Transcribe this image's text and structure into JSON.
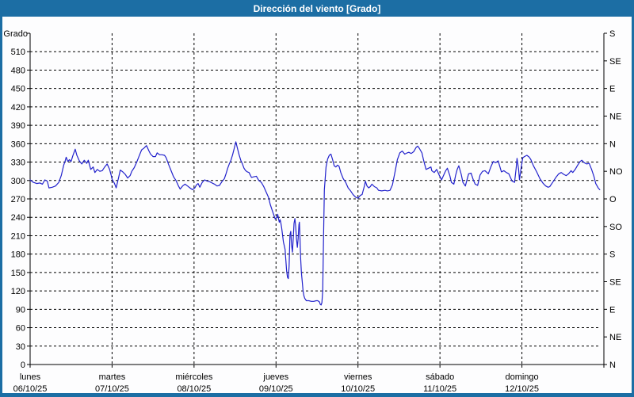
{
  "window": {
    "title": "Dirección del viento [Grado]"
  },
  "colors": {
    "frame": "#1c6ea4",
    "background": "#fdfdfe",
    "line": "#2222cc",
    "grid": "#000000",
    "title_text": "#ffffff"
  },
  "chart_data": {
    "type": "line",
    "title": "Dirección del viento [Grado]",
    "ylabel": "Grado",
    "y_axis": {
      "min": 0,
      "max": 540,
      "grid_step": 30,
      "label_step": 30
    },
    "y_right_compass": [
      {
        "deg": 0,
        "label": "N"
      },
      {
        "deg": 45,
        "label": "NE"
      },
      {
        "deg": 90,
        "label": "E"
      },
      {
        "deg": 135,
        "label": "SE"
      },
      {
        "deg": 180,
        "label": "S"
      },
      {
        "deg": 225,
        "label": "SO"
      },
      {
        "deg": 270,
        "label": "O"
      },
      {
        "deg": 315,
        "label": "NO"
      },
      {
        "deg": 360,
        "label": "N"
      },
      {
        "deg": 405,
        "label": "NE"
      },
      {
        "deg": 450,
        "label": "E"
      },
      {
        "deg": 495,
        "label": "SE"
      },
      {
        "deg": 540,
        "label": "S"
      }
    ],
    "x_days": [
      {
        "name": "lunes",
        "date": "06/10/25"
      },
      {
        "name": "martes",
        "date": "07/10/25"
      },
      {
        "name": "miércoles",
        "date": "08/10/25"
      },
      {
        "name": "jueves",
        "date": "09/10/25"
      },
      {
        "name": "viernes",
        "date": "10/10/25"
      },
      {
        "name": "sábado",
        "date": "11/10/25"
      },
      {
        "name": "domingo",
        "date": "12/10/25"
      }
    ],
    "grid": true,
    "legend_position": "none",
    "series": [
      {
        "name": "Dirección del viento",
        "units": "Grado",
        "points": [
          [
            0,
            301
          ],
          [
            0.04,
            297
          ],
          [
            0.08,
            295
          ],
          [
            0.12,
            296
          ],
          [
            0.15,
            294
          ],
          [
            0.18,
            301
          ],
          [
            0.21,
            299
          ],
          [
            0.23,
            288
          ],
          [
            0.27,
            289
          ],
          [
            0.31,
            291
          ],
          [
            0.35,
            297
          ],
          [
            0.38,
            308
          ],
          [
            0.41,
            325
          ],
          [
            0.43,
            333
          ],
          [
            0.44,
            338
          ],
          [
            0.46,
            331
          ],
          [
            0.48,
            334
          ],
          [
            0.5,
            331
          ],
          [
            0.52,
            340
          ],
          [
            0.55,
            351
          ],
          [
            0.57,
            341
          ],
          [
            0.6,
            332
          ],
          [
            0.63,
            327
          ],
          [
            0.66,
            333
          ],
          [
            0.69,
            328
          ],
          [
            0.71,
            333
          ],
          [
            0.74,
            318
          ],
          [
            0.77,
            322
          ],
          [
            0.79,
            313
          ],
          [
            0.82,
            318
          ],
          [
            0.85,
            315
          ],
          [
            0.88,
            316
          ],
          [
            0.91,
            322
          ],
          [
            0.94,
            327
          ],
          [
            0.97,
            318
          ],
          [
            0.99,
            308
          ],
          [
            1,
            302
          ],
          [
            1.03,
            295
          ],
          [
            1.05,
            288
          ],
          [
            1.08,
            305
          ],
          [
            1.1,
            317
          ],
          [
            1.13,
            314
          ],
          [
            1.16,
            310
          ],
          [
            1.19,
            304
          ],
          [
            1.22,
            308
          ],
          [
            1.24,
            315
          ],
          [
            1.27,
            321
          ],
          [
            1.3,
            330
          ],
          [
            1.33,
            340
          ],
          [
            1.36,
            350
          ],
          [
            1.39,
            353
          ],
          [
            1.42,
            357
          ],
          [
            1.45,
            348
          ],
          [
            1.47,
            343
          ],
          [
            1.5,
            339
          ],
          [
            1.53,
            339
          ],
          [
            1.55,
            345
          ],
          [
            1.58,
            342
          ],
          [
            1.61,
            342
          ],
          [
            1.64,
            341
          ],
          [
            1.66,
            337
          ],
          [
            1.69,
            326
          ],
          [
            1.72,
            316
          ],
          [
            1.75,
            306
          ],
          [
            1.78,
            300
          ],
          [
            1.81,
            291
          ],
          [
            1.83,
            286
          ],
          [
            1.86,
            291
          ],
          [
            1.89,
            294
          ],
          [
            1.92,
            291
          ],
          [
            1.95,
            288
          ],
          [
            1.98,
            285
          ],
          [
            2.01,
            288
          ],
          [
            2.03,
            293
          ],
          [
            2.05,
            295
          ],
          [
            2.07,
            289
          ],
          [
            2.1,
            297
          ],
          [
            2.13,
            301
          ],
          [
            2.16,
            299
          ],
          [
            2.19,
            298
          ],
          [
            2.22,
            296
          ],
          [
            2.25,
            294
          ],
          [
            2.28,
            291
          ],
          [
            2.31,
            292
          ],
          [
            2.34,
            298
          ],
          [
            2.37,
            303
          ],
          [
            2.39,
            311
          ],
          [
            2.41,
            320
          ],
          [
            2.43,
            327
          ],
          [
            2.45,
            333
          ],
          [
            2.47,
            342
          ],
          [
            2.49,
            352
          ],
          [
            2.51,
            363
          ],
          [
            2.53,
            352
          ],
          [
            2.55,
            342
          ],
          [
            2.57,
            333
          ],
          [
            2.59,
            327
          ],
          [
            2.61,
            320
          ],
          [
            2.63,
            316
          ],
          [
            2.65,
            314
          ],
          [
            2.67,
            313
          ],
          [
            2.7,
            305
          ],
          [
            2.73,
            306
          ],
          [
            2.76,
            307
          ],
          [
            2.79,
            300
          ],
          [
            2.82,
            297
          ],
          [
            2.85,
            290
          ],
          [
            2.88,
            281
          ],
          [
            2.91,
            272
          ],
          [
            2.93,
            261
          ],
          [
            2.96,
            249
          ],
          [
            2.99,
            237
          ],
          [
            3.01,
            240
          ],
          [
            3.02,
            245
          ],
          [
            3.03,
            238
          ],
          [
            3.04,
            232
          ],
          [
            3.05,
            236
          ],
          [
            3.06,
            230
          ],
          [
            3.07,
            222
          ],
          [
            3.09,
            200
          ],
          [
            3.11,
            188
          ],
          [
            3.12,
            170
          ],
          [
            3.13,
            152
          ],
          [
            3.14,
            142
          ],
          [
            3.15,
            140
          ],
          [
            3.16,
            160
          ],
          [
            3.17,
            212
          ],
          [
            3.18,
            217
          ],
          [
            3.19,
            195
          ],
          [
            3.2,
            183
          ],
          [
            3.21,
            205
          ],
          [
            3.22,
            230
          ],
          [
            3.23,
            238
          ],
          [
            3.24,
            225
          ],
          [
            3.25,
            205
          ],
          [
            3.26,
            191
          ],
          [
            3.27,
            205
          ],
          [
            3.28,
            228
          ],
          [
            3.285,
            232
          ],
          [
            3.29,
            215
          ],
          [
            3.3,
            175
          ],
          [
            3.31,
            150
          ],
          [
            3.32,
            135
          ],
          [
            3.33,
            120
          ],
          [
            3.34,
            112
          ],
          [
            3.35,
            108
          ],
          [
            3.37,
            104
          ],
          [
            3.4,
            104
          ],
          [
            3.43,
            103
          ],
          [
            3.46,
            103
          ],
          [
            3.49,
            104
          ],
          [
            3.51,
            104
          ],
          [
            3.53,
            102
          ],
          [
            3.54,
            98
          ],
          [
            3.55,
            97
          ],
          [
            3.56,
            101
          ],
          [
            3.57,
            120
          ],
          [
            3.58,
            210
          ],
          [
            3.59,
            285
          ],
          [
            3.61,
            322
          ],
          [
            3.63,
            335
          ],
          [
            3.65,
            341
          ],
          [
            3.67,
            343
          ],
          [
            3.69,
            334
          ],
          [
            3.71,
            324
          ],
          [
            3.73,
            322
          ],
          [
            3.75,
            325
          ],
          [
            3.77,
            323
          ],
          [
            3.79,
            313
          ],
          [
            3.82,
            303
          ],
          [
            3.85,
            297
          ],
          [
            3.88,
            288
          ],
          [
            3.91,
            283
          ],
          [
            3.94,
            277
          ],
          [
            3.97,
            273
          ],
          [
            4,
            271
          ],
          [
            4.03,
            276
          ],
          [
            4.05,
            277
          ],
          [
            4.08,
            292
          ],
          [
            4.09,
            299
          ],
          [
            4.11,
            291
          ],
          [
            4.13,
            288
          ],
          [
            4.15,
            290
          ],
          [
            4.17,
            294
          ],
          [
            4.2,
            290
          ],
          [
            4.23,
            288
          ],
          [
            4.25,
            284
          ],
          [
            4.29,
            283
          ],
          [
            4.33,
            284
          ],
          [
            4.36,
            283
          ],
          [
            4.39,
            284
          ],
          [
            4.42,
            293
          ],
          [
            4.45,
            313
          ],
          [
            4.48,
            334
          ],
          [
            4.51,
            345
          ],
          [
            4.54,
            348
          ],
          [
            4.57,
            343
          ],
          [
            4.6,
            345
          ],
          [
            4.62,
            346
          ],
          [
            4.65,
            344
          ],
          [
            4.68,
            347
          ],
          [
            4.71,
            354
          ],
          [
            4.73,
            356
          ],
          [
            4.75,
            352
          ],
          [
            4.78,
            345
          ],
          [
            4.8,
            333
          ],
          [
            4.83,
            318
          ],
          [
            4.86,
            320
          ],
          [
            4.89,
            322
          ],
          [
            4.9,
            316
          ],
          [
            4.93,
            313
          ],
          [
            4.96,
            318
          ],
          [
            4.99,
            309
          ],
          [
            5.02,
            301
          ],
          [
            5.05,
            310
          ],
          [
            5.07,
            316
          ],
          [
            5.09,
            320
          ],
          [
            5.12,
            308
          ],
          [
            5.14,
            297
          ],
          [
            5.17,
            294
          ],
          [
            5.19,
            308
          ],
          [
            5.21,
            318
          ],
          [
            5.23,
            324
          ],
          [
            5.26,
            310
          ],
          [
            5.28,
            297
          ],
          [
            5.31,
            291
          ],
          [
            5.35,
            311
          ],
          [
            5.38,
            312
          ],
          [
            5.41,
            300
          ],
          [
            5.43,
            294
          ],
          [
            5.46,
            292
          ],
          [
            5.49,
            309
          ],
          [
            5.52,
            315
          ],
          [
            5.55,
            316
          ],
          [
            5.59,
            311
          ],
          [
            5.62,
            322
          ],
          [
            5.65,
            331
          ],
          [
            5.68,
            329
          ],
          [
            5.71,
            332
          ],
          [
            5.75,
            314
          ],
          [
            5.78,
            316
          ],
          [
            5.81,
            313
          ],
          [
            5.84,
            311
          ],
          [
            5.88,
            299
          ],
          [
            5.91,
            297
          ],
          [
            5.93,
            320
          ],
          [
            5.94,
            336
          ],
          [
            5.96,
            318
          ],
          [
            5.97,
            301
          ],
          [
            5.99,
            320
          ],
          [
            6.01,
            337
          ],
          [
            6.03,
            339
          ],
          [
            6.06,
            341
          ],
          [
            6.09,
            338
          ],
          [
            6.11,
            334
          ],
          [
            6.14,
            324
          ],
          [
            6.18,
            314
          ],
          [
            6.22,
            303
          ],
          [
            6.26,
            295
          ],
          [
            6.29,
            291
          ],
          [
            6.32,
            289
          ],
          [
            6.34,
            290
          ],
          [
            6.38,
            298
          ],
          [
            6.42,
            306
          ],
          [
            6.45,
            311
          ],
          [
            6.48,
            313
          ],
          [
            6.51,
            310
          ],
          [
            6.54,
            308
          ],
          [
            6.57,
            311
          ],
          [
            6.6,
            316
          ],
          [
            6.62,
            313
          ],
          [
            6.65,
            318
          ],
          [
            6.68,
            325
          ],
          [
            6.71,
            331
          ],
          [
            6.73,
            333
          ],
          [
            6.76,
            329
          ],
          [
            6.79,
            327
          ],
          [
            6.82,
            328
          ],
          [
            6.85,
            318
          ],
          [
            6.88,
            306
          ],
          [
            6.9,
            295
          ],
          [
            6.93,
            288
          ],
          [
            6.95,
            285
          ]
        ]
      }
    ]
  }
}
